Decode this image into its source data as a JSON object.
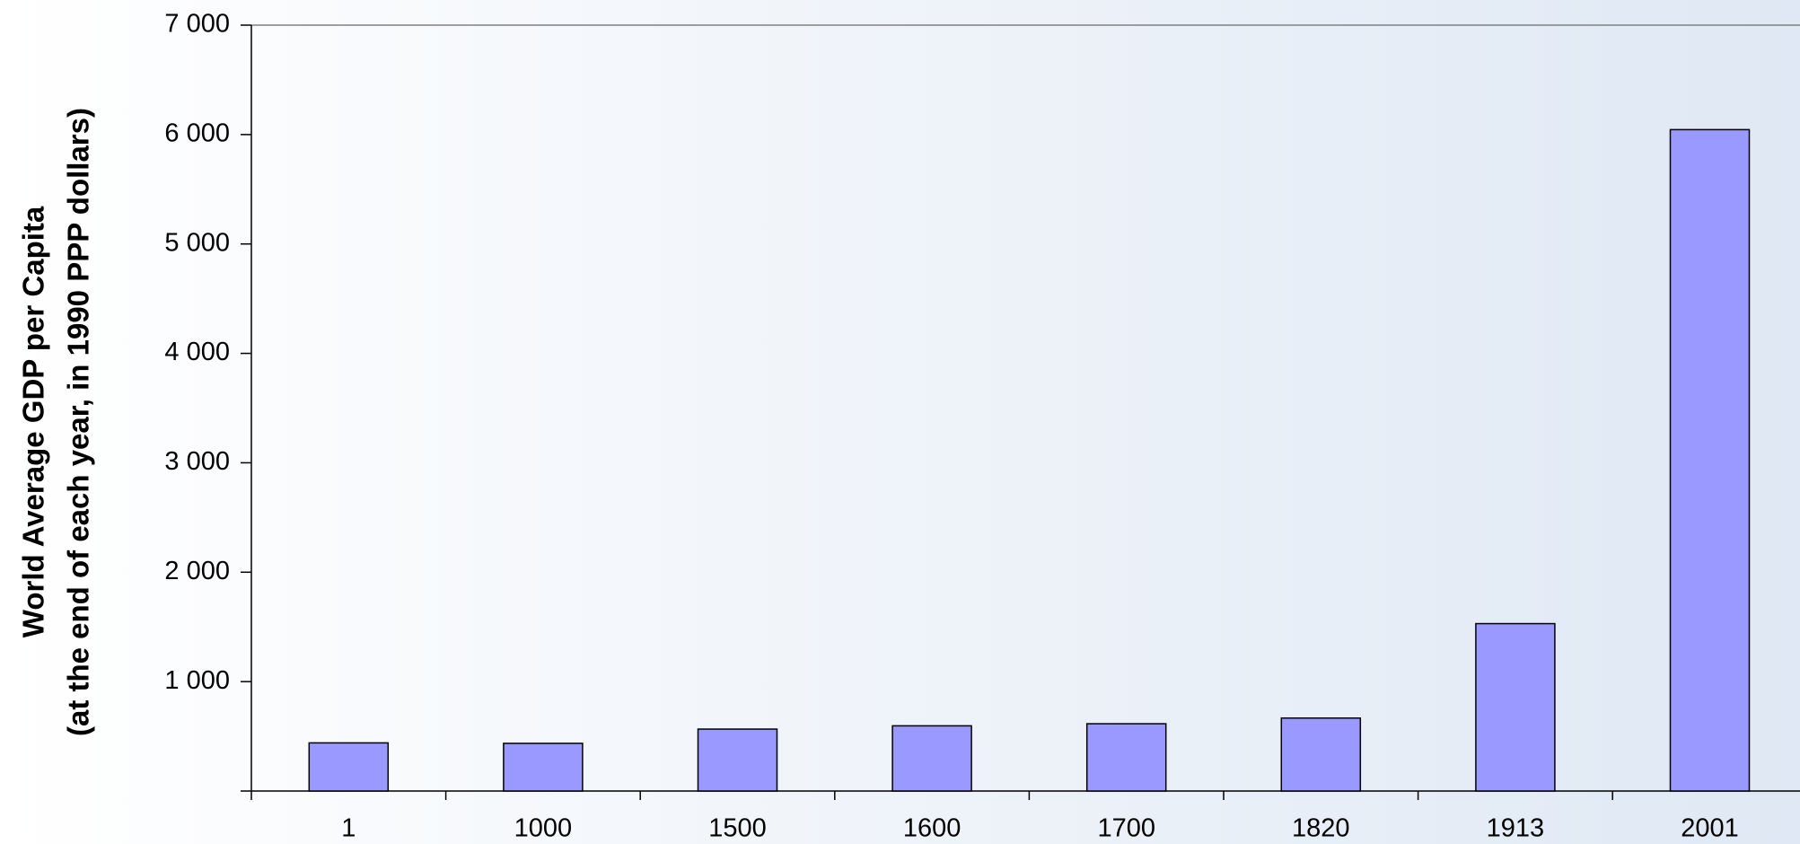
{
  "chart_data": {
    "type": "bar",
    "ylabel": [
      "World Average GDP per Capita",
      "(at the end of each year, in 1990 PPP dollars)"
    ],
    "categories": [
      "1",
      "1000",
      "1500",
      "1600",
      "1700",
      "1820",
      "1913",
      "2001"
    ],
    "values": [
      440,
      436,
      566,
      596,
      615,
      667,
      1530,
      6045
    ],
    "color": "#9999ff",
    "ylim": [
      0,
      7000
    ],
    "yticks": [
      {
        "value": 1000,
        "label": "1 000"
      },
      {
        "value": 2000,
        "label": "2 000"
      },
      {
        "value": 3000,
        "label": "3 000"
      },
      {
        "value": 4000,
        "label": "4 000"
      },
      {
        "value": 5000,
        "label": "5 000"
      },
      {
        "value": 6000,
        "label": "6 000"
      },
      {
        "value": 7000,
        "label": "7 000"
      }
    ],
    "grid": false
  }
}
